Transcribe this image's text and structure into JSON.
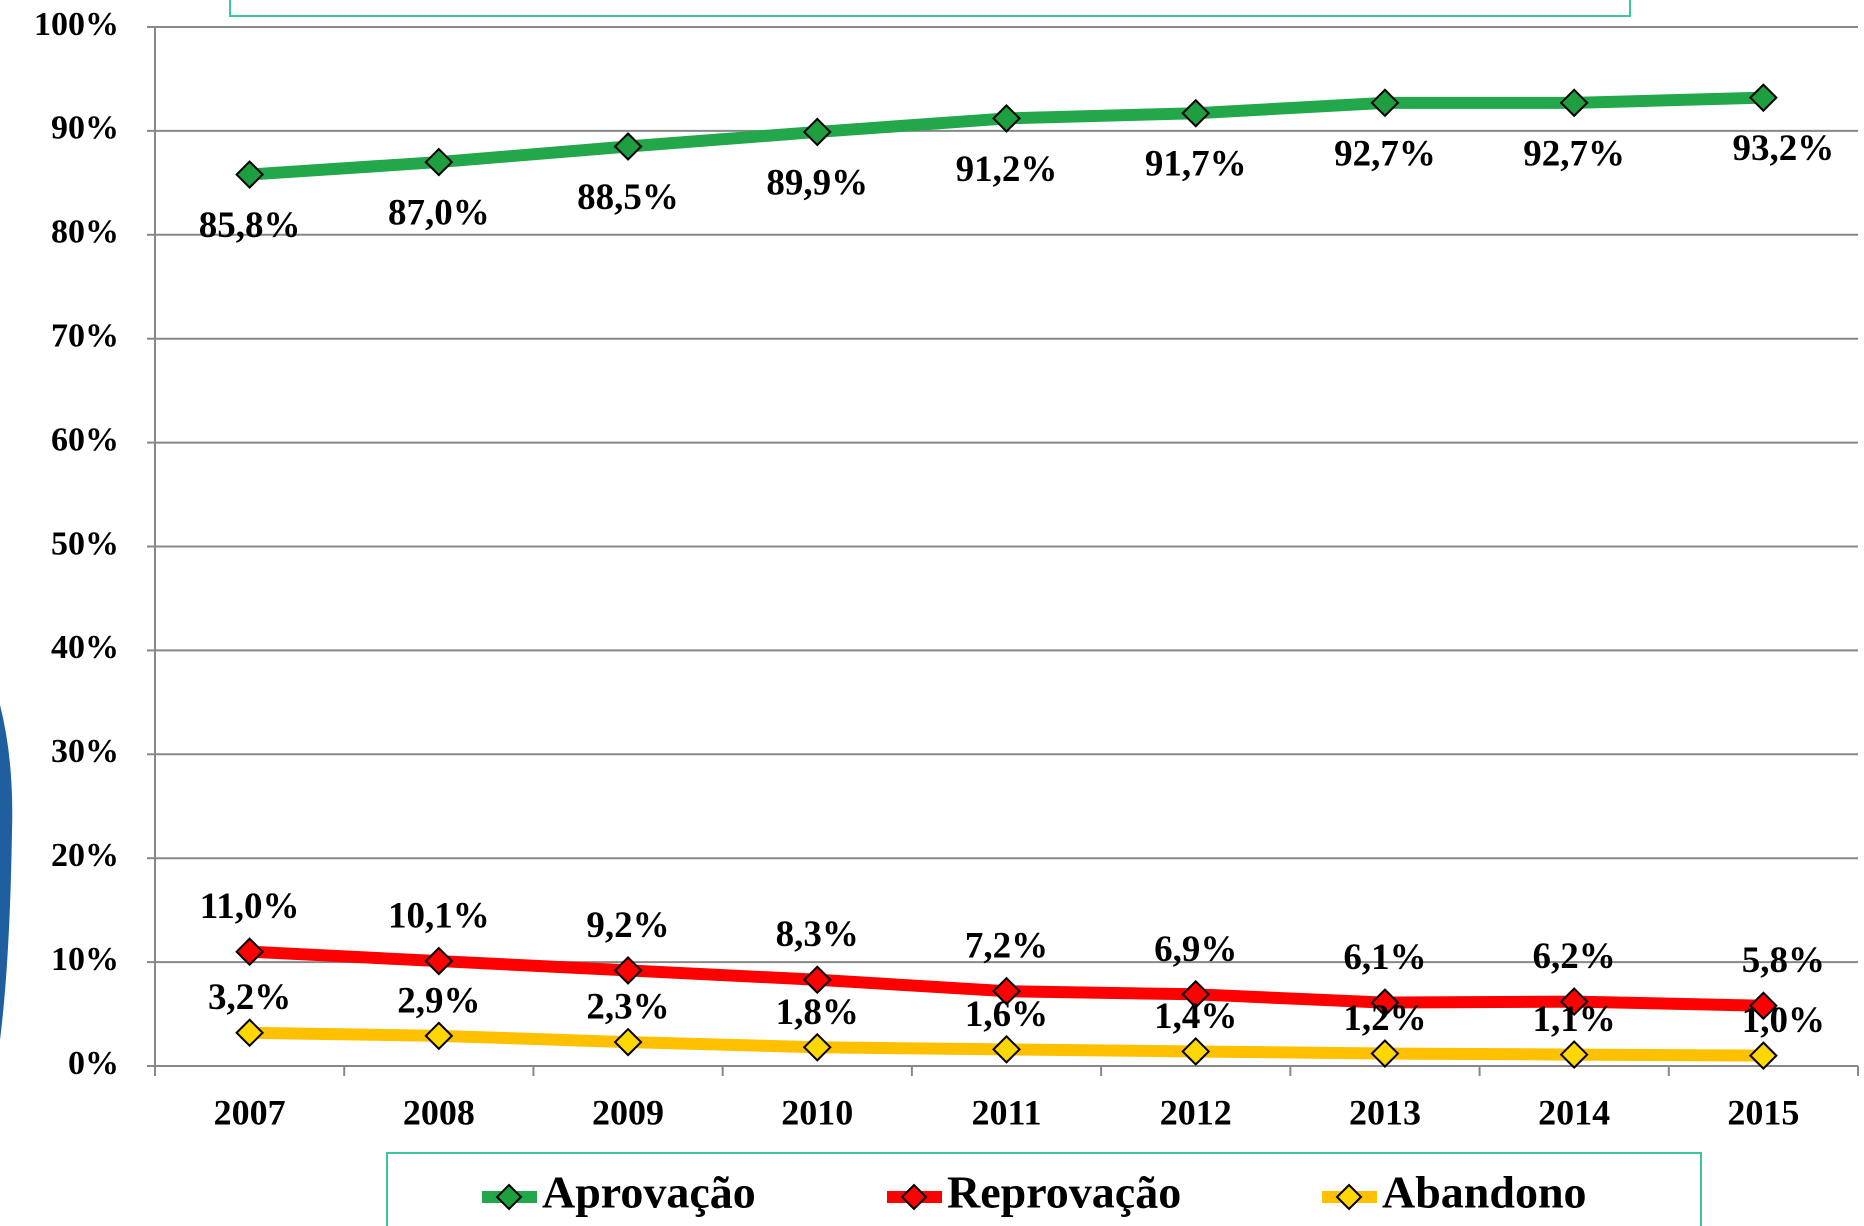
{
  "chart_data": {
    "type": "line",
    "categories": [
      "2007",
      "2008",
      "2009",
      "2010",
      "2011",
      "2012",
      "2013",
      "2014",
      "2015"
    ],
    "series": [
      {
        "name": "Aprovação",
        "color": "#22a84a",
        "marker_color": "#1e9e3e",
        "values": [
          85.8,
          87.0,
          88.5,
          89.9,
          91.2,
          91.7,
          92.7,
          92.7,
          93.2
        ],
        "value_labels": [
          "85,8%",
          "87,0%",
          "88,5%",
          "89,9%",
          "91,2%",
          "91,7%",
          "92,7%",
          "92,7%",
          "93,2%"
        ]
      },
      {
        "name": "Reprovação",
        "color": "#ff0000",
        "marker_color": "#ff0000",
        "values": [
          11.0,
          10.1,
          9.2,
          8.3,
          7.2,
          6.9,
          6.1,
          6.2,
          5.8
        ],
        "value_labels": [
          "11,0%",
          "10,1%",
          "9,2%",
          "8,3%",
          "7,2%",
          "6,9%",
          "6,1%",
          "6,2%",
          "5,8%"
        ]
      },
      {
        "name": "Abandono",
        "color": "#ffc000",
        "marker_color": "#ffd700",
        "values": [
          3.2,
          2.9,
          2.3,
          1.8,
          1.6,
          1.4,
          1.2,
          1.1,
          1.0
        ],
        "value_labels": [
          "3,2%",
          "2,9%",
          "2,3%",
          "1,8%",
          "1,6%",
          "1,4%",
          "1,2%",
          "1,1%",
          "1,0%"
        ]
      }
    ],
    "ylim": [
      0,
      100
    ],
    "yticks": [
      {
        "value": 0,
        "label": "0%"
      },
      {
        "value": 10,
        "label": "10%"
      },
      {
        "value": 20,
        "label": "20%"
      },
      {
        "value": 30,
        "label": "30%"
      },
      {
        "value": 40,
        "label": "40%"
      },
      {
        "value": 50,
        "label": "50%"
      },
      {
        "value": 60,
        "label": "60%"
      },
      {
        "value": 70,
        "label": "70%"
      },
      {
        "value": 80,
        "label": "80%"
      },
      {
        "value": 90,
        "label": "90%"
      },
      {
        "value": 100,
        "label": "100%"
      }
    ],
    "grid": true,
    "legend": "bottom"
  }
}
